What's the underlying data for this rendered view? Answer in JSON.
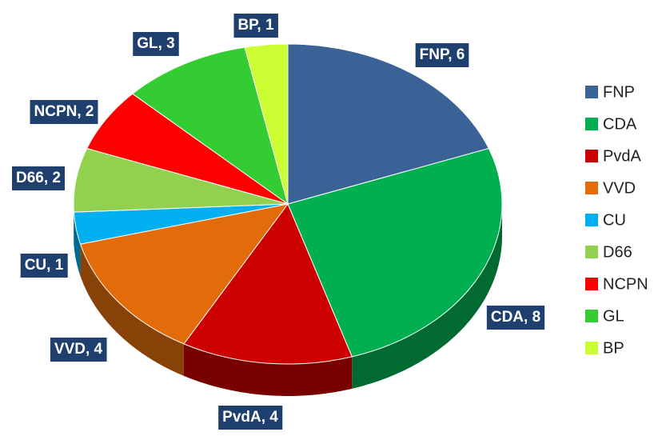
{
  "chart_data": {
    "type": "pie",
    "categories": [
      "FNP",
      "CDA",
      "PvdA",
      "VVD",
      "CU",
      "D66",
      "NCPN",
      "GL",
      "BP"
    ],
    "values": [
      6,
      8,
      4,
      4,
      1,
      2,
      2,
      3,
      1
    ],
    "value_labels": [
      "FNP, 6",
      "CDA, 8",
      "PvdA, 4",
      "VVD, 4",
      "CU, 1",
      "D66, 2",
      "NCPN, 2",
      "GL, 3",
      "BP, 1"
    ],
    "colors": [
      "#3a6296",
      "#00b050",
      "#cc0000",
      "#e36c0a",
      "#00b0f0",
      "#92d050",
      "#ff0000",
      "#33cc33",
      "#ccff33"
    ],
    "legend": "right"
  }
}
